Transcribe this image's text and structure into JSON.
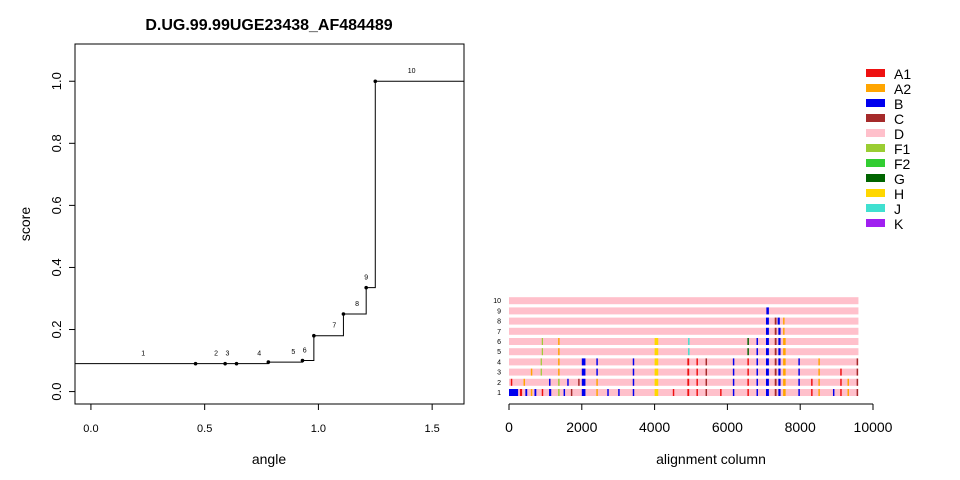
{
  "chart_data": [
    {
      "type": "line",
      "title": "D.UG.99.99UGE23438_AF484489",
      "xlabel": "angle",
      "ylabel": "score",
      "xlim": [
        -0.07,
        1.64
      ],
      "ylim": [
        -0.04,
        1.12
      ],
      "x_ticks": [
        0.0,
        0.5,
        1.0,
        1.5
      ],
      "x_tick_labels": [
        "0.0",
        "0.5",
        "1.0",
        "1.5"
      ],
      "y_ticks": [
        0.0,
        0.2,
        0.4,
        0.6,
        0.8,
        1.0
      ],
      "y_tick_labels": [
        "0.0",
        "0.2",
        "0.4",
        "0.6",
        "0.8",
        "1.0"
      ],
      "grid": false,
      "step": true,
      "points": [
        {
          "label": "1",
          "x": 0.46,
          "y": 0.09
        },
        {
          "label": "2",
          "x": 0.59,
          "y": 0.09
        },
        {
          "label": "3",
          "x": 0.64,
          "y": 0.09
        },
        {
          "label": "4",
          "x": 0.78,
          "y": 0.095
        },
        {
          "label": "5",
          "x": 0.93,
          "y": 0.1
        },
        {
          "label": "6",
          "x": 0.98,
          "y": 0.18
        },
        {
          "label": "7",
          "x": 1.11,
          "y": 0.25
        },
        {
          "label": "8",
          "x": 1.21,
          "y": 0.335
        },
        {
          "label": "9",
          "x": 1.25,
          "y": 1.0
        },
        {
          "label": "10",
          "x": 1.64,
          "y": 1.0
        }
      ],
      "line_color": "#000000"
    },
    {
      "type": "heatmap",
      "xlabel": "alignment column",
      "xlim": [
        0,
        10000
      ],
      "x_ticks": [
        0,
        2000,
        4000,
        6000,
        8000,
        10000
      ],
      "x_tick_labels": [
        "0",
        "2000",
        "4000",
        "6000",
        "8000",
        "10000"
      ],
      "alignment_length": 9600,
      "rows": [
        "1",
        "2",
        "3",
        "4",
        "5",
        "6",
        "7",
        "8",
        "9",
        "10"
      ],
      "background_subtype": "D",
      "legend": {
        "placement": "right",
        "entries": [
          {
            "name": "A1",
            "color": "#ee1111"
          },
          {
            "name": "A2",
            "color": "#ffa500"
          },
          {
            "name": "B",
            "color": "#0000ee"
          },
          {
            "name": "C",
            "color": "#a52a2a"
          },
          {
            "name": "D",
            "color": "#ffc0cb"
          },
          {
            "name": "F1",
            "color": "#9acd32"
          },
          {
            "name": "F2",
            "color": "#32cd32"
          },
          {
            "name": "G",
            "color": "#006400"
          },
          {
            "name": "H",
            "color": "#ffd700"
          },
          {
            "name": "J",
            "color": "#40e0d0"
          },
          {
            "name": "K",
            "color": "#a020f0"
          }
        ]
      },
      "colors": {
        "A1": "#ee1111",
        "A2": "#ffa500",
        "B": "#0000ee",
        "C": "#a52a2a",
        "D": "#ffc0cb",
        "F1": "#9acd32",
        "F2": "#32cd32",
        "G": "#006400",
        "H": "#ffd700",
        "J": "#40e0d0",
        "K": "#a020f0"
      },
      "segments": [
        {
          "row": "10",
          "subtype": "D",
          "start": 0,
          "end": 9600
        },
        {
          "row": "9",
          "subtype": "D",
          "start": 0,
          "end": 9600
        },
        {
          "row": "9",
          "subtype": "B",
          "start": 7070,
          "end": 7140
        },
        {
          "row": "8",
          "subtype": "D",
          "start": 0,
          "end": 9600
        },
        {
          "row": "8",
          "subtype": "B",
          "start": 7060,
          "end": 7140
        },
        {
          "row": "8",
          "subtype": "C",
          "start": 7300,
          "end": 7350
        },
        {
          "row": "8",
          "subtype": "B",
          "start": 7380,
          "end": 7440
        },
        {
          "row": "8",
          "subtype": "A2",
          "start": 7530,
          "end": 7570
        },
        {
          "row": "7",
          "subtype": "D",
          "start": 0,
          "end": 9600
        },
        {
          "row": "7",
          "subtype": "B",
          "start": 7060,
          "end": 7140
        },
        {
          "row": "7",
          "subtype": "C",
          "start": 7300,
          "end": 7350
        },
        {
          "row": "7",
          "subtype": "B",
          "start": 7400,
          "end": 7460
        },
        {
          "row": "7",
          "subtype": "A2",
          "start": 7530,
          "end": 7570
        },
        {
          "row": "6",
          "subtype": "D",
          "start": 0,
          "end": 9600
        },
        {
          "row": "6",
          "subtype": "F1",
          "start": 900,
          "end": 930
        },
        {
          "row": "6",
          "subtype": "A2",
          "start": 1350,
          "end": 1390
        },
        {
          "row": "6",
          "subtype": "H",
          "start": 4000,
          "end": 4100
        },
        {
          "row": "6",
          "subtype": "J",
          "start": 4920,
          "end": 4960
        },
        {
          "row": "6",
          "subtype": "G",
          "start": 6550,
          "end": 6590
        },
        {
          "row": "6",
          "subtype": "B",
          "start": 6800,
          "end": 6840
        },
        {
          "row": "6",
          "subtype": "B",
          "start": 7060,
          "end": 7140
        },
        {
          "row": "6",
          "subtype": "C",
          "start": 7300,
          "end": 7350
        },
        {
          "row": "6",
          "subtype": "B",
          "start": 7400,
          "end": 7460
        },
        {
          "row": "6",
          "subtype": "A2",
          "start": 7530,
          "end": 7600
        },
        {
          "row": "5",
          "subtype": "D",
          "start": 0,
          "end": 9600
        },
        {
          "row": "5",
          "subtype": "F1",
          "start": 900,
          "end": 930
        },
        {
          "row": "5",
          "subtype": "A2",
          "start": 1350,
          "end": 1390
        },
        {
          "row": "5",
          "subtype": "H",
          "start": 4000,
          "end": 4100
        },
        {
          "row": "5",
          "subtype": "J",
          "start": 4920,
          "end": 4960
        },
        {
          "row": "5",
          "subtype": "G",
          "start": 6550,
          "end": 6590
        },
        {
          "row": "5",
          "subtype": "B",
          "start": 6800,
          "end": 6840
        },
        {
          "row": "5",
          "subtype": "B",
          "start": 7060,
          "end": 7140
        },
        {
          "row": "5",
          "subtype": "C",
          "start": 7300,
          "end": 7350
        },
        {
          "row": "5",
          "subtype": "B",
          "start": 7400,
          "end": 7460
        },
        {
          "row": "5",
          "subtype": "A2",
          "start": 7530,
          "end": 7600
        },
        {
          "row": "4",
          "subtype": "D",
          "start": 0,
          "end": 9600
        },
        {
          "row": "4",
          "subtype": "F1",
          "start": 870,
          "end": 900
        },
        {
          "row": "4",
          "subtype": "A2",
          "start": 1350,
          "end": 1390
        },
        {
          "row": "4",
          "subtype": "B",
          "start": 2000,
          "end": 2100
        },
        {
          "row": "4",
          "subtype": "B",
          "start": 2400,
          "end": 2440
        },
        {
          "row": "4",
          "subtype": "B",
          "start": 3400,
          "end": 3440
        },
        {
          "row": "4",
          "subtype": "H",
          "start": 4000,
          "end": 4100
        },
        {
          "row": "4",
          "subtype": "A1",
          "start": 4900,
          "end": 4950
        },
        {
          "row": "4",
          "subtype": "A1",
          "start": 5150,
          "end": 5190
        },
        {
          "row": "4",
          "subtype": "C",
          "start": 5400,
          "end": 5440
        },
        {
          "row": "4",
          "subtype": "B",
          "start": 6150,
          "end": 6190
        },
        {
          "row": "4",
          "subtype": "A1",
          "start": 6550,
          "end": 6590
        },
        {
          "row": "4",
          "subtype": "B",
          "start": 6800,
          "end": 6840
        },
        {
          "row": "4",
          "subtype": "B",
          "start": 7060,
          "end": 7140
        },
        {
          "row": "4",
          "subtype": "C",
          "start": 7300,
          "end": 7350
        },
        {
          "row": "4",
          "subtype": "B",
          "start": 7400,
          "end": 7460
        },
        {
          "row": "4",
          "subtype": "A2",
          "start": 7530,
          "end": 7600
        },
        {
          "row": "4",
          "subtype": "B",
          "start": 7950,
          "end": 7990
        },
        {
          "row": "4",
          "subtype": "A2",
          "start": 8500,
          "end": 8540
        },
        {
          "row": "4",
          "subtype": "C",
          "start": 9550,
          "end": 9590
        },
        {
          "row": "3",
          "subtype": "D",
          "start": 0,
          "end": 9600
        },
        {
          "row": "3",
          "subtype": "A2",
          "start": 600,
          "end": 640
        },
        {
          "row": "3",
          "subtype": "F1",
          "start": 870,
          "end": 900
        },
        {
          "row": "3",
          "subtype": "A2",
          "start": 1350,
          "end": 1390
        },
        {
          "row": "3",
          "subtype": "B",
          "start": 2000,
          "end": 2100
        },
        {
          "row": "3",
          "subtype": "B",
          "start": 2400,
          "end": 2440
        },
        {
          "row": "3",
          "subtype": "B",
          "start": 3400,
          "end": 3440
        },
        {
          "row": "3",
          "subtype": "H",
          "start": 4000,
          "end": 4100
        },
        {
          "row": "3",
          "subtype": "A1",
          "start": 4900,
          "end": 4950
        },
        {
          "row": "3",
          "subtype": "A1",
          "start": 5150,
          "end": 5190
        },
        {
          "row": "3",
          "subtype": "C",
          "start": 5400,
          "end": 5440
        },
        {
          "row": "3",
          "subtype": "B",
          "start": 6150,
          "end": 6190
        },
        {
          "row": "3",
          "subtype": "A1",
          "start": 6550,
          "end": 6590
        },
        {
          "row": "3",
          "subtype": "B",
          "start": 6800,
          "end": 6840
        },
        {
          "row": "3",
          "subtype": "B",
          "start": 7060,
          "end": 7140
        },
        {
          "row": "3",
          "subtype": "C",
          "start": 7300,
          "end": 7350
        },
        {
          "row": "3",
          "subtype": "B",
          "start": 7400,
          "end": 7460
        },
        {
          "row": "3",
          "subtype": "A2",
          "start": 7530,
          "end": 7600
        },
        {
          "row": "3",
          "subtype": "B",
          "start": 7950,
          "end": 7990
        },
        {
          "row": "3",
          "subtype": "A2",
          "start": 8500,
          "end": 8540
        },
        {
          "row": "3",
          "subtype": "A1",
          "start": 9100,
          "end": 9140
        },
        {
          "row": "3",
          "subtype": "C",
          "start": 9550,
          "end": 9590
        },
        {
          "row": "2",
          "subtype": "D",
          "start": 0,
          "end": 9600
        },
        {
          "row": "2",
          "subtype": "A1",
          "start": 50,
          "end": 90
        },
        {
          "row": "2",
          "subtype": "A2",
          "start": 400,
          "end": 440
        },
        {
          "row": "2",
          "subtype": "B",
          "start": 1100,
          "end": 1140
        },
        {
          "row": "2",
          "subtype": "F1",
          "start": 1350,
          "end": 1390
        },
        {
          "row": "2",
          "subtype": "B",
          "start": 1600,
          "end": 1640
        },
        {
          "row": "2",
          "subtype": "C",
          "start": 1900,
          "end": 1940
        },
        {
          "row": "2",
          "subtype": "B",
          "start": 2000,
          "end": 2100
        },
        {
          "row": "2",
          "subtype": "A2",
          "start": 2400,
          "end": 2440
        },
        {
          "row": "2",
          "subtype": "B",
          "start": 3400,
          "end": 3440
        },
        {
          "row": "2",
          "subtype": "H",
          "start": 4000,
          "end": 4100
        },
        {
          "row": "2",
          "subtype": "A1",
          "start": 4900,
          "end": 4950
        },
        {
          "row": "2",
          "subtype": "A1",
          "start": 5150,
          "end": 5190
        },
        {
          "row": "2",
          "subtype": "C",
          "start": 5400,
          "end": 5440
        },
        {
          "row": "2",
          "subtype": "B",
          "start": 6150,
          "end": 6190
        },
        {
          "row": "2",
          "subtype": "A1",
          "start": 6550,
          "end": 6590
        },
        {
          "row": "2",
          "subtype": "B",
          "start": 6800,
          "end": 6840
        },
        {
          "row": "2",
          "subtype": "B",
          "start": 7060,
          "end": 7140
        },
        {
          "row": "2",
          "subtype": "C",
          "start": 7300,
          "end": 7350
        },
        {
          "row": "2",
          "subtype": "B",
          "start": 7400,
          "end": 7460
        },
        {
          "row": "2",
          "subtype": "A2",
          "start": 7530,
          "end": 7600
        },
        {
          "row": "2",
          "subtype": "B",
          "start": 7950,
          "end": 7990
        },
        {
          "row": "2",
          "subtype": "A1",
          "start": 8300,
          "end": 8340
        },
        {
          "row": "2",
          "subtype": "A2",
          "start": 8500,
          "end": 8540
        },
        {
          "row": "2",
          "subtype": "A1",
          "start": 9100,
          "end": 9140
        },
        {
          "row": "2",
          "subtype": "A2",
          "start": 9300,
          "end": 9340
        },
        {
          "row": "2",
          "subtype": "C",
          "start": 9550,
          "end": 9590
        },
        {
          "row": "1",
          "subtype": "D",
          "start": 0,
          "end": 9600
        },
        {
          "row": "1",
          "subtype": "B",
          "start": 0,
          "end": 250
        },
        {
          "row": "1",
          "subtype": "A1",
          "start": 300,
          "end": 360
        },
        {
          "row": "1",
          "subtype": "B",
          "start": 450,
          "end": 500
        },
        {
          "row": "1",
          "subtype": "A2",
          "start": 600,
          "end": 640
        },
        {
          "row": "1",
          "subtype": "B",
          "start": 700,
          "end": 750
        },
        {
          "row": "1",
          "subtype": "A1",
          "start": 900,
          "end": 940
        },
        {
          "row": "1",
          "subtype": "B",
          "start": 1100,
          "end": 1160
        },
        {
          "row": "1",
          "subtype": "F1",
          "start": 1350,
          "end": 1390
        },
        {
          "row": "1",
          "subtype": "B",
          "start": 1500,
          "end": 1540
        },
        {
          "row": "1",
          "subtype": "C",
          "start": 1700,
          "end": 1740
        },
        {
          "row": "1",
          "subtype": "B",
          "start": 2000,
          "end": 2100
        },
        {
          "row": "1",
          "subtype": "A2",
          "start": 2400,
          "end": 2440
        },
        {
          "row": "1",
          "subtype": "B",
          "start": 2700,
          "end": 2740
        },
        {
          "row": "1",
          "subtype": "B",
          "start": 3000,
          "end": 3040
        },
        {
          "row": "1",
          "subtype": "B",
          "start": 3400,
          "end": 3440
        },
        {
          "row": "1",
          "subtype": "H",
          "start": 4000,
          "end": 4100
        },
        {
          "row": "1",
          "subtype": "A1",
          "start": 4500,
          "end": 4540
        },
        {
          "row": "1",
          "subtype": "A1",
          "start": 4900,
          "end": 4950
        },
        {
          "row": "1",
          "subtype": "A1",
          "start": 5150,
          "end": 5190
        },
        {
          "row": "1",
          "subtype": "C",
          "start": 5400,
          "end": 5440
        },
        {
          "row": "1",
          "subtype": "A1",
          "start": 5800,
          "end": 5840
        },
        {
          "row": "1",
          "subtype": "B",
          "start": 6150,
          "end": 6190
        },
        {
          "row": "1",
          "subtype": "A1",
          "start": 6550,
          "end": 6590
        },
        {
          "row": "1",
          "subtype": "B",
          "start": 6800,
          "end": 6840
        },
        {
          "row": "1",
          "subtype": "B",
          "start": 7060,
          "end": 7140
        },
        {
          "row": "1",
          "subtype": "C",
          "start": 7300,
          "end": 7350
        },
        {
          "row": "1",
          "subtype": "B",
          "start": 7400,
          "end": 7460
        },
        {
          "row": "1",
          "subtype": "A2",
          "start": 7530,
          "end": 7600
        },
        {
          "row": "1",
          "subtype": "B",
          "start": 7950,
          "end": 7990
        },
        {
          "row": "1",
          "subtype": "A1",
          "start": 8300,
          "end": 8340
        },
        {
          "row": "1",
          "subtype": "A2",
          "start": 8500,
          "end": 8540
        },
        {
          "row": "1",
          "subtype": "B",
          "start": 8900,
          "end": 8940
        },
        {
          "row": "1",
          "subtype": "A1",
          "start": 9100,
          "end": 9140
        },
        {
          "row": "1",
          "subtype": "A2",
          "start": 9300,
          "end": 9340
        },
        {
          "row": "1",
          "subtype": "C",
          "start": 9550,
          "end": 9590
        }
      ]
    }
  ]
}
